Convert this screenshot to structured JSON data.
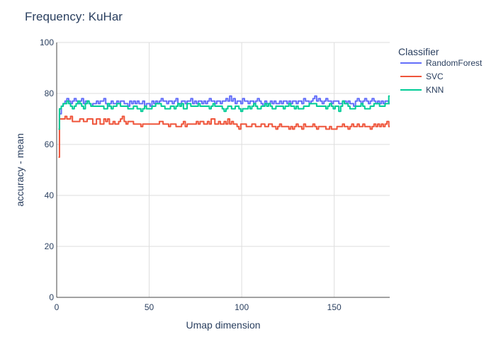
{
  "chart_data": {
    "type": "line",
    "title": "Frequency: KuHar",
    "xlabel": "Umap dimension",
    "ylabel": "accuracy - mean",
    "xlim": [
      0,
      180
    ],
    "ylim": [
      0,
      100
    ],
    "x_ticks": [
      0,
      50,
      100,
      150
    ],
    "y_ticks": [
      0,
      20,
      40,
      60,
      80,
      100
    ],
    "grid": true,
    "line_shape": "step",
    "legend": {
      "title": "Classifier",
      "placement": "top-right, outside plot"
    },
    "x": [
      1,
      2,
      3,
      4,
      5,
      6,
      7,
      8,
      9,
      10,
      11,
      12,
      13,
      14,
      15,
      16,
      17,
      18,
      19,
      20,
      21,
      22,
      23,
      24,
      25,
      26,
      27,
      28,
      29,
      30,
      31,
      32,
      33,
      34,
      35,
      36,
      37,
      38,
      39,
      40,
      41,
      42,
      43,
      44,
      45,
      46,
      47,
      48,
      49,
      50,
      51,
      52,
      53,
      54,
      55,
      56,
      57,
      58,
      59,
      60,
      61,
      62,
      63,
      64,
      65,
      66,
      67,
      68,
      69,
      70,
      71,
      72,
      73,
      74,
      75,
      76,
      77,
      78,
      79,
      80,
      81,
      82,
      83,
      84,
      85,
      86,
      87,
      88,
      89,
      90,
      91,
      92,
      93,
      94,
      95,
      96,
      97,
      98,
      99,
      100,
      101,
      102,
      103,
      104,
      105,
      106,
      107,
      108,
      109,
      110,
      111,
      112,
      113,
      114,
      115,
      116,
      117,
      118,
      119,
      120,
      121,
      122,
      123,
      124,
      125,
      126,
      127,
      128,
      129,
      130,
      131,
      132,
      133,
      134,
      135,
      136,
      137,
      138,
      139,
      140,
      141,
      142,
      143,
      144,
      145,
      146,
      147,
      148,
      149,
      150,
      151,
      152,
      153,
      154,
      155,
      156,
      157,
      158,
      159,
      160,
      161,
      162,
      163,
      164,
      165,
      166,
      167,
      168,
      169,
      170,
      171,
      172,
      173,
      174,
      175,
      176,
      177,
      178,
      179,
      180
    ],
    "series": [
      {
        "name": "RandomForest",
        "color": "#636efa",
        "values": [
          66,
          72,
          75,
          76,
          77,
          78,
          77,
          76,
          77,
          78,
          77,
          76,
          77,
          78,
          76,
          77,
          77,
          76,
          75,
          76,
          76,
          77,
          76,
          77,
          77,
          78,
          76,
          75,
          76,
          77,
          76,
          76,
          77,
          76,
          77,
          77,
          76,
          76,
          75,
          77,
          76,
          77,
          76,
          77,
          76,
          76,
          77,
          75,
          76,
          76,
          75,
          77,
          76,
          77,
          76,
          77,
          78,
          77,
          77,
          76,
          77,
          77,
          76,
          77,
          78,
          76,
          76,
          77,
          77,
          76,
          77,
          77,
          78,
          76,
          77,
          76,
          77,
          77,
          76,
          77,
          76,
          77,
          78,
          77,
          77,
          76,
          77,
          77,
          76,
          77,
          77,
          78,
          77,
          79,
          77,
          78,
          76,
          77,
          77,
          76,
          78,
          77,
          77,
          76,
          77,
          77,
          76,
          77,
          78,
          77,
          76,
          75,
          77,
          76,
          76,
          77,
          76,
          77,
          76,
          76,
          77,
          76,
          77,
          77,
          76,
          77,
          76,
          77,
          77,
          76,
          77,
          77,
          76,
          78,
          77,
          77,
          76,
          77,
          78,
          79,
          77,
          78,
          77,
          76,
          77,
          78,
          77,
          77,
          76,
          77,
          77,
          77,
          76,
          76,
          77,
          77,
          76,
          77,
          76,
          76,
          75,
          77,
          78,
          77,
          76,
          77,
          78,
          77,
          76,
          77,
          78,
          77,
          76,
          77,
          76,
          77,
          76,
          77,
          77,
          76
        ]
      },
      {
        "name": "SVC",
        "color": "#ef553b",
        "values": [
          55,
          70,
          70,
          70,
          71,
          70,
          70,
          71,
          69,
          69,
          69,
          69,
          70,
          70,
          69,
          69,
          70,
          70,
          70,
          68,
          68,
          70,
          70,
          68,
          68,
          70,
          69,
          70,
          68,
          68,
          69,
          68,
          68,
          69,
          70,
          71,
          69,
          68,
          69,
          69,
          69,
          68,
          68,
          68,
          68,
          67,
          68,
          68,
          68,
          68,
          68,
          68,
          68,
          68,
          68,
          69,
          69,
          68,
          68,
          68,
          67,
          68,
          68,
          68,
          67,
          67,
          67,
          68,
          69,
          67,
          68,
          68,
          68,
          68,
          68,
          69,
          68,
          69,
          69,
          68,
          68,
          69,
          68,
          70,
          70,
          68,
          68,
          69,
          68,
          68,
          69,
          68,
          70,
          68,
          69,
          68,
          68,
          67,
          66,
          68,
          68,
          68,
          67,
          67,
          67,
          68,
          68,
          67,
          67,
          67,
          68,
          68,
          67,
          67,
          68,
          68,
          67,
          67,
          66,
          67,
          68,
          67,
          67,
          67,
          67,
          66,
          67,
          66,
          67,
          68,
          67,
          67,
          66,
          68,
          67,
          67,
          67,
          67,
          68,
          67,
          66,
          67,
          67,
          67,
          67,
          66,
          66,
          67,
          66,
          66,
          66,
          67,
          67,
          67,
          68,
          67,
          67,
          66,
          67,
          68,
          67,
          67,
          68,
          67,
          67,
          68,
          67,
          67,
          67,
          66,
          67,
          68,
          67,
          68,
          67,
          68,
          67,
          68,
          69,
          67
        ]
      },
      {
        "name": "KNN",
        "color": "#00cc96",
        "values": [
          66,
          74,
          75,
          76,
          76,
          77,
          76,
          75,
          74,
          75,
          76,
          77,
          76,
          75,
          74,
          76,
          77,
          76,
          75,
          75,
          75,
          75,
          75,
          75,
          75,
          74,
          74,
          76,
          75,
          74,
          75,
          75,
          76,
          76,
          75,
          75,
          75,
          75,
          74,
          74,
          74,
          75,
          75,
          74,
          74,
          73,
          74,
          75,
          74,
          74,
          74,
          75,
          75,
          76,
          76,
          76,
          75,
          75,
          74,
          74,
          74,
          75,
          75,
          74,
          75,
          76,
          75,
          76,
          74,
          74,
          76,
          76,
          75,
          75,
          75,
          75,
          76,
          75,
          75,
          75,
          75,
          75,
          74,
          75,
          76,
          75,
          75,
          75,
          75,
          74,
          73,
          74,
          75,
          75,
          74,
          74,
          75,
          75,
          74,
          73,
          74,
          74,
          74,
          75,
          74,
          75,
          76,
          75,
          74,
          74,
          75,
          75,
          76,
          75,
          76,
          75,
          74,
          74,
          75,
          75,
          75,
          75,
          74,
          75,
          75,
          76,
          75,
          75,
          74,
          75,
          74,
          74,
          74,
          75,
          75,
          75,
          76,
          76,
          76,
          76,
          75,
          75,
          75,
          75,
          75,
          74,
          75,
          76,
          75,
          74,
          75,
          75,
          73,
          75,
          77,
          76,
          76,
          75,
          74,
          74,
          74,
          75,
          75,
          75,
          76,
          75,
          74,
          74,
          74,
          75,
          75,
          76,
          76,
          76,
          75,
          75,
          75,
          76,
          76,
          79
        ]
      }
    ]
  }
}
